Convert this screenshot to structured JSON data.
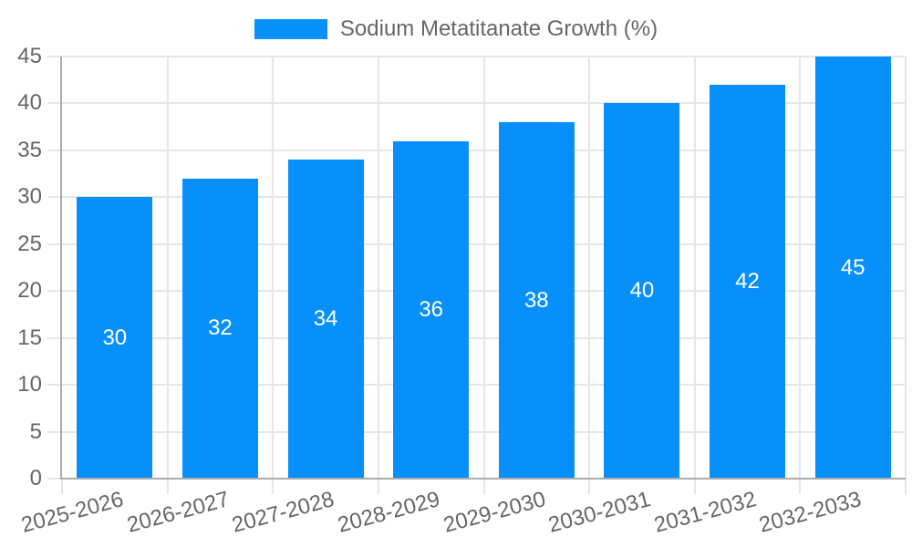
{
  "chart_data": {
    "type": "bar",
    "series_name": "Sodium Metatitanate Growth (%)",
    "categories": [
      "2025-2026",
      "2026-2027",
      "2027-2028",
      "2028-2029",
      "2029-2030",
      "2030-2031",
      "2031-2032",
      "2032-2033"
    ],
    "values": [
      30,
      32,
      34,
      36,
      38,
      40,
      42,
      45
    ],
    "bar_value_labels": [
      "30",
      "32",
      "34",
      "36",
      "38",
      "40",
      "42",
      "45"
    ],
    "title": "",
    "xlabel": "",
    "ylabel": "",
    "ylim": [
      0,
      45
    ],
    "ytick_step": 5,
    "yticks": [
      0,
      5,
      10,
      15,
      20,
      25,
      30,
      35,
      40,
      45
    ],
    "grid": true,
    "legend_position": "top",
    "x_label_rotation_deg": -15,
    "colors": {
      "bar": "#0890fa",
      "bar_label": "#ffffff",
      "axis_text": "#666666",
      "legend_text": "#666666",
      "grid_line": "#e6e6e6",
      "tick_mark": "#e6e6e6",
      "axis_line": "#ababab",
      "background": "#ffffff"
    }
  }
}
